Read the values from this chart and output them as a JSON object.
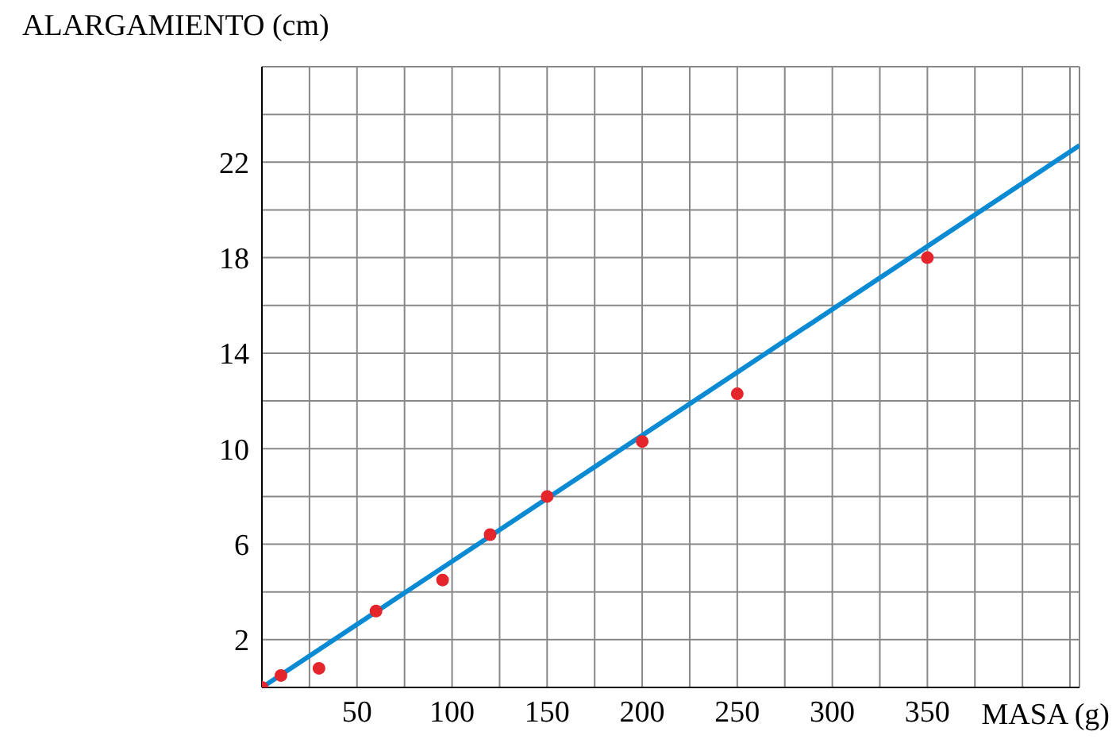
{
  "chart_data": {
    "type": "scatter",
    "xlabel": "MASA (g)",
    "ylabel": "ALARGAMIENTO (cm)",
    "xlim": [
      0,
      430
    ],
    "ylim": [
      0,
      26
    ],
    "xticks": [
      {
        "value": 0,
        "label": null
      },
      {
        "value": 25,
        "label": null
      },
      50,
      {
        "value": 75,
        "label": null
      },
      100,
      {
        "value": 125,
        "label": null
      },
      150,
      {
        "value": 175,
        "label": null
      },
      200,
      {
        "value": 225,
        "label": null
      },
      250,
      {
        "value": 275,
        "label": null
      },
      300,
      {
        "value": 325,
        "label": null
      },
      350,
      {
        "value": 375,
        "label": null
      },
      {
        "value": 400,
        "label": null
      },
      {
        "value": 425,
        "label": null
      }
    ],
    "yticks": [
      {
        "value": 0,
        "label": null
      },
      2,
      {
        "value": 4,
        "label": null
      },
      6,
      {
        "value": 8,
        "label": null
      },
      10,
      {
        "value": 12,
        "label": null
      },
      14,
      {
        "value": 16,
        "label": null
      },
      18,
      {
        "value": 20,
        "label": null
      },
      22,
      {
        "value": 24,
        "label": null
      },
      {
        "value": 26,
        "label": null
      }
    ],
    "grid": true,
    "marker": "circle",
    "series": [
      {
        "color": "#e4252b",
        "x": [
          0,
          10,
          30,
          60,
          95,
          120,
          150,
          200,
          250,
          350
        ],
        "values": [
          0,
          0.5,
          0.8,
          3.2,
          4.5,
          6.4,
          8,
          10.3,
          12.3,
          18
        ]
      },
      {
        "type": "line",
        "color": "#0a8ad2",
        "marker": "none",
        "x": [
          0,
          430
        ],
        "values": [
          0,
          22.7
        ]
      }
    ]
  }
}
